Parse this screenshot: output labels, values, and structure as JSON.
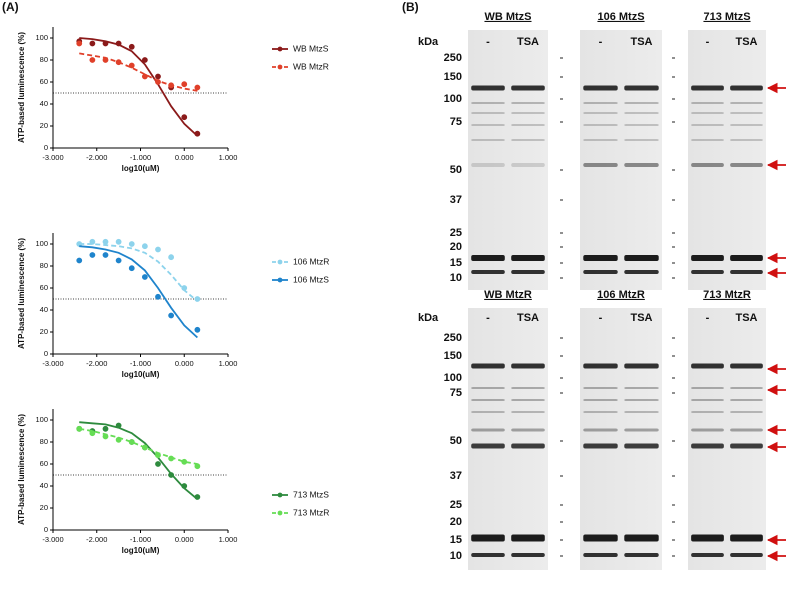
{
  "panels": [
    "(A)",
    "(B)"
  ],
  "chart_data": [
    {
      "type": "scatter",
      "ylabel": "ATP-based luminescence (%)",
      "xlabel": "log10(uM)",
      "x": [
        -2.4,
        -2.1,
        -1.8,
        -1.5,
        -1.2,
        -0.9,
        -0.6,
        -0.3,
        0.0,
        0.3
      ],
      "xlim": [
        -3,
        1
      ],
      "xticks": [
        {
          "value": -3,
          "label": "-3.000"
        },
        {
          "value": -2,
          "label": "-2.000"
        },
        {
          "value": -1,
          "label": "-1.000"
        },
        {
          "value": 0,
          "label": "0.000"
        },
        {
          "value": 1,
          "label": "1.000"
        }
      ],
      "ylim": [
        0,
        110
      ],
      "yticks": [
        0,
        20,
        40,
        60,
        80,
        100
      ],
      "reference_line": 50,
      "series": [
        {
          "name": "WB MtzS",
          "color": "#8b1a1a",
          "dashed": false,
          "values": [
            97,
            95,
            95,
            95,
            92,
            80,
            65,
            55,
            28,
            13
          ],
          "fit": [
            100,
            99,
            97,
            94,
            88,
            76,
            58,
            38,
            22,
            11
          ]
        },
        {
          "name": "WB MtzR",
          "color": "#e0402a",
          "dashed": true,
          "values": [
            95,
            80,
            80,
            78,
            75,
            65,
            60,
            57,
            58,
            55
          ],
          "fit": [
            86,
            84,
            82,
            78,
            73,
            67,
            61,
            57,
            54,
            52
          ]
        }
      ]
    },
    {
      "type": "scatter",
      "ylabel": "ATP-based luminescence (%)",
      "xlabel": "log10(uM)",
      "x": [
        -2.4,
        -2.1,
        -1.8,
        -1.5,
        -1.2,
        -0.9,
        -0.6,
        -0.3,
        0.0,
        0.3
      ],
      "xlim": [
        -3,
        1
      ],
      "xticks": [
        {
          "value": -3,
          "label": "-3.000"
        },
        {
          "value": -2,
          "label": "-2.000"
        },
        {
          "value": -1,
          "label": "-1.000"
        },
        {
          "value": 0,
          "label": "0.000"
        },
        {
          "value": 1,
          "label": "1.000"
        }
      ],
      "ylim": [
        0,
        110
      ],
      "yticks": [
        0,
        20,
        40,
        60,
        80,
        100
      ],
      "reference_line": 50,
      "series": [
        {
          "name": "106 MtzR",
          "color": "#8dd3ec",
          "dashed": true,
          "values": [
            100,
            102,
            102,
            102,
            100,
            98,
            95,
            88,
            60,
            50
          ],
          "fit": [
            100,
            100,
            99,
            98,
            96,
            92,
            84,
            72,
            58,
            48
          ]
        },
        {
          "name": "106 MtzS",
          "color": "#1f84cc",
          "dashed": false,
          "values": [
            85,
            90,
            90,
            85,
            78,
            70,
            52,
            35,
            null,
            22
          ],
          "fit": [
            98,
            97,
            95,
            92,
            86,
            76,
            60,
            42,
            26,
            15
          ]
        }
      ]
    },
    {
      "type": "scatter",
      "ylabel": "ATP-based luminescence (%)",
      "xlabel": "log10(uM)",
      "x": [
        -2.4,
        -2.1,
        -1.8,
        -1.5,
        -1.2,
        -0.9,
        -0.6,
        -0.3,
        0.0,
        0.3
      ],
      "xlim": [
        -3,
        1
      ],
      "xticks": [
        {
          "value": -3,
          "label": "-3.000"
        },
        {
          "value": -2,
          "label": "-2.000"
        },
        {
          "value": -1,
          "label": "-1.000"
        },
        {
          "value": 0,
          "label": "0.000"
        },
        {
          "value": 1,
          "label": "1.000"
        }
      ],
      "ylim": [
        0,
        110
      ],
      "yticks": [
        0,
        20,
        40,
        60,
        80,
        100
      ],
      "reference_line": 50,
      "series": [
        {
          "name": "713 MtzS",
          "color": "#2e8b3e",
          "dashed": false,
          "values": [
            92,
            90,
            92,
            95,
            80,
            75,
            60,
            50,
            40,
            30
          ],
          "fit": [
            98,
            97,
            96,
            93,
            88,
            79,
            66,
            51,
            38,
            28
          ]
        },
        {
          "name": "713 MtzR",
          "color": "#66dd55",
          "dashed": true,
          "values": [
            92,
            88,
            85,
            82,
            80,
            75,
            68,
            65,
            62,
            58
          ],
          "fit": [
            92,
            90,
            87,
            84,
            80,
            75,
            70,
            66,
            62,
            60
          ]
        }
      ]
    }
  ],
  "blots": {
    "unit": "kDa",
    "ladder": [
      "250",
      "150",
      "100",
      "75",
      "50",
      "37",
      "25",
      "20",
      "15",
      "10"
    ],
    "rows": [
      {
        "groups": [
          {
            "title": "WB MtzS",
            "lanes": [
              "-",
              "TSA"
            ]
          },
          {
            "title": "106 MtzS",
            "lanes": [
              "-",
              "TSA"
            ]
          },
          {
            "title": "713 MtzS",
            "lanes": [
              "-",
              "TSA"
            ]
          }
        ]
      },
      {
        "groups": [
          {
            "title": "WB MtzR",
            "lanes": [
              "-",
              "TSA"
            ]
          },
          {
            "title": "106 MtzR",
            "lanes": [
              "-",
              "TSA"
            ]
          },
          {
            "title": "713 MtzR",
            "lanes": [
              "-",
              "TSA"
            ]
          }
        ]
      }
    ]
  }
}
